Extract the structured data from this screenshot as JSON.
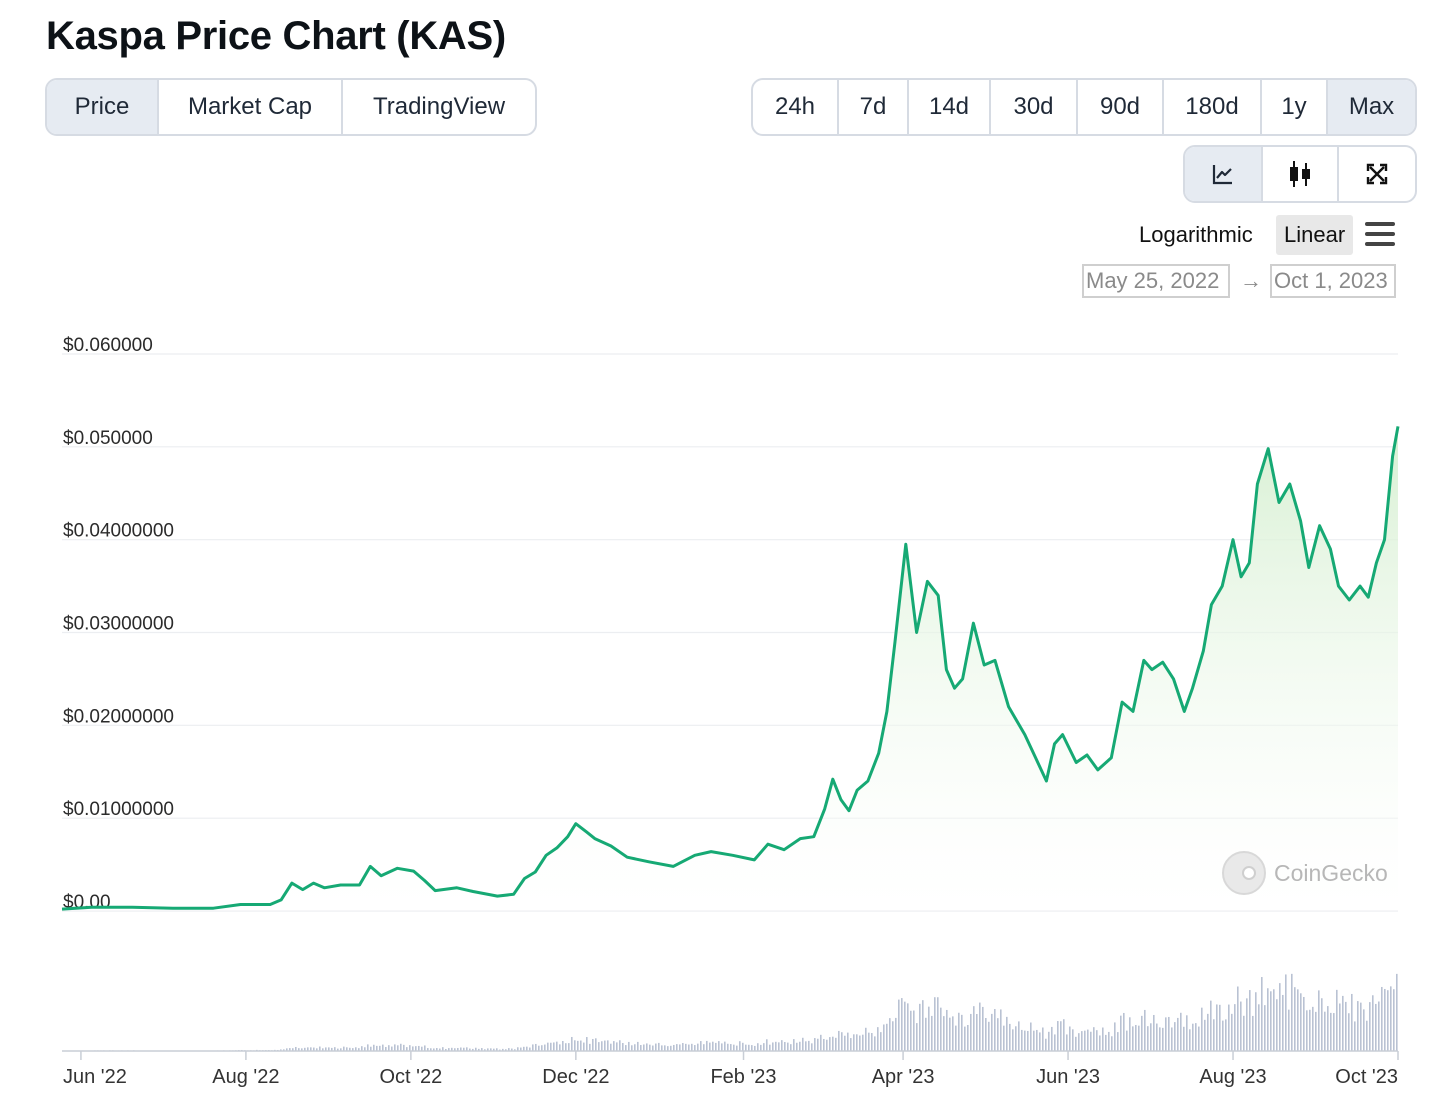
{
  "page": {
    "title": "Kaspa Price Chart (KAS)"
  },
  "view_tabs": [
    {
      "label": "Price",
      "active": true
    },
    {
      "label": "Market Cap",
      "active": false
    },
    {
      "label": "TradingView",
      "active": false
    }
  ],
  "range_tabs": [
    {
      "label": "24h",
      "active": false
    },
    {
      "label": "7d",
      "active": false
    },
    {
      "label": "14d",
      "active": false
    },
    {
      "label": "30d",
      "active": false
    },
    {
      "label": "90d",
      "active": false
    },
    {
      "label": "180d",
      "active": false
    },
    {
      "label": "1y",
      "active": false
    },
    {
      "label": "Max",
      "active": true
    }
  ],
  "chart_tools": [
    {
      "icon": "line-chart-icon",
      "active": true
    },
    {
      "icon": "candlestick-icon",
      "active": false
    },
    {
      "icon": "fullscreen-icon",
      "active": false
    }
  ],
  "scale": {
    "log_label": "Logarithmic",
    "linear_label": "Linear",
    "selected": "Linear"
  },
  "date_range": {
    "from": "May 25, 2022",
    "arrow": "→",
    "to": "Oct 1, 2023"
  },
  "watermark": {
    "text": "CoinGecko"
  },
  "colors": {
    "line": "#16a974",
    "fill_top": "#d5efd0",
    "volume": "#b9c2d3",
    "grid": "#e9ecef"
  },
  "chart_data": {
    "type": "line",
    "title": "Kaspa Price Chart (KAS)",
    "ylim": [
      0,
      0.06
    ],
    "y_ticks": [
      {
        "value": 0.06,
        "label": "$0.060000"
      },
      {
        "value": 0.05,
        "label": "$0.050000"
      },
      {
        "value": 0.04,
        "label": "$0.04000000"
      },
      {
        "value": 0.03,
        "label": "$0.03000000"
      },
      {
        "value": 0.02,
        "label": "$0.02000000"
      },
      {
        "value": 0.01,
        "label": "$0.01000000"
      },
      {
        "value": 0.0,
        "label": "$0.00"
      }
    ],
    "xlim": [
      "2022-05-25",
      "2023-10-01"
    ],
    "x_ticks": [
      {
        "date": "2022-06-01",
        "label": "Jun '22"
      },
      {
        "date": "2022-08-01",
        "label": "Aug '22"
      },
      {
        "date": "2022-10-01",
        "label": "Oct '22"
      },
      {
        "date": "2022-12-01",
        "label": "Dec '22"
      },
      {
        "date": "2023-02-01",
        "label": "Feb '23"
      },
      {
        "date": "2023-04-01",
        "label": "Apr '23"
      },
      {
        "date": "2023-06-01",
        "label": "Jun '23"
      },
      {
        "date": "2023-08-01",
        "label": "Aug '23"
      },
      {
        "date": "2023-10-01",
        "label": "Oct '23"
      }
    ],
    "grid": true,
    "legend": "none",
    "series": [
      {
        "points": [
          [
            "2022-05-25",
            0.0002
          ],
          [
            "2022-06-05",
            0.0004
          ],
          [
            "2022-06-20",
            0.0004
          ],
          [
            "2022-07-05",
            0.0003
          ],
          [
            "2022-07-20",
            0.0003
          ],
          [
            "2022-07-30",
            0.0007
          ],
          [
            "2022-08-10",
            0.0007
          ],
          [
            "2022-08-14",
            0.0012
          ],
          [
            "2022-08-18",
            0.003
          ],
          [
            "2022-08-22",
            0.0023
          ],
          [
            "2022-08-26",
            0.003
          ],
          [
            "2022-08-30",
            0.0025
          ],
          [
            "2022-09-05",
            0.0028
          ],
          [
            "2022-09-12",
            0.0028
          ],
          [
            "2022-09-16",
            0.0048
          ],
          [
            "2022-09-20",
            0.0038
          ],
          [
            "2022-09-26",
            0.0046
          ],
          [
            "2022-10-02",
            0.0043
          ],
          [
            "2022-10-06",
            0.0033
          ],
          [
            "2022-10-10",
            0.0022
          ],
          [
            "2022-10-18",
            0.0025
          ],
          [
            "2022-10-24",
            0.0021
          ],
          [
            "2022-11-02",
            0.0016
          ],
          [
            "2022-11-08",
            0.0018
          ],
          [
            "2022-11-12",
            0.0035
          ],
          [
            "2022-11-16",
            0.0042
          ],
          [
            "2022-11-20",
            0.006
          ],
          [
            "2022-11-24",
            0.0068
          ],
          [
            "2022-11-28",
            0.008
          ],
          [
            "2022-12-01",
            0.0094
          ],
          [
            "2022-12-05",
            0.0085
          ],
          [
            "2022-12-08",
            0.0078
          ],
          [
            "2022-12-14",
            0.007
          ],
          [
            "2022-12-20",
            0.0058
          ],
          [
            "2022-12-28",
            0.0053
          ],
          [
            "2023-01-06",
            0.0048
          ],
          [
            "2023-01-14",
            0.006
          ],
          [
            "2023-01-20",
            0.0064
          ],
          [
            "2023-01-28",
            0.006
          ],
          [
            "2023-02-05",
            0.0055
          ],
          [
            "2023-02-10",
            0.0072
          ],
          [
            "2023-02-16",
            0.0066
          ],
          [
            "2023-02-22",
            0.0078
          ],
          [
            "2023-02-27",
            0.008
          ],
          [
            "2023-03-03",
            0.011
          ],
          [
            "2023-03-06",
            0.0142
          ],
          [
            "2023-03-09",
            0.012
          ],
          [
            "2023-03-12",
            0.0108
          ],
          [
            "2023-03-15",
            0.013
          ],
          [
            "2023-03-19",
            0.014
          ],
          [
            "2023-03-23",
            0.017
          ],
          [
            "2023-03-26",
            0.0215
          ],
          [
            "2023-03-29",
            0.029
          ],
          [
            "2023-04-02",
            0.0395
          ],
          [
            "2023-04-06",
            0.03
          ],
          [
            "2023-04-10",
            0.0355
          ],
          [
            "2023-04-14",
            0.034
          ],
          [
            "2023-04-17",
            0.026
          ],
          [
            "2023-04-20",
            0.024
          ],
          [
            "2023-04-23",
            0.025
          ],
          [
            "2023-04-27",
            0.031
          ],
          [
            "2023-05-01",
            0.0265
          ],
          [
            "2023-05-05",
            0.027
          ],
          [
            "2023-05-10",
            0.022
          ],
          [
            "2023-05-16",
            0.019
          ],
          [
            "2023-05-20",
            0.0165
          ],
          [
            "2023-05-24",
            0.014
          ],
          [
            "2023-05-27",
            0.018
          ],
          [
            "2023-05-30",
            0.019
          ],
          [
            "2023-06-04",
            0.016
          ],
          [
            "2023-06-08",
            0.0168
          ],
          [
            "2023-06-12",
            0.0152
          ],
          [
            "2023-06-17",
            0.0165
          ],
          [
            "2023-06-21",
            0.0225
          ],
          [
            "2023-06-25",
            0.0215
          ],
          [
            "2023-06-29",
            0.027
          ],
          [
            "2023-07-02",
            0.026
          ],
          [
            "2023-07-06",
            0.0268
          ],
          [
            "2023-07-10",
            0.025
          ],
          [
            "2023-07-14",
            0.0215
          ],
          [
            "2023-07-17",
            0.024
          ],
          [
            "2023-07-21",
            0.028
          ],
          [
            "2023-07-24",
            0.033
          ],
          [
            "2023-07-28",
            0.035
          ],
          [
            "2023-08-01",
            0.04
          ],
          [
            "2023-08-04",
            0.036
          ],
          [
            "2023-08-07",
            0.0375
          ],
          [
            "2023-08-10",
            0.046
          ],
          [
            "2023-08-14",
            0.0498
          ],
          [
            "2023-08-18",
            0.044
          ],
          [
            "2023-08-22",
            0.046
          ],
          [
            "2023-08-26",
            0.042
          ],
          [
            "2023-08-29",
            0.037
          ],
          [
            "2023-09-02",
            0.0415
          ],
          [
            "2023-09-06",
            0.039
          ],
          [
            "2023-09-09",
            0.035
          ],
          [
            "2023-09-13",
            0.0335
          ],
          [
            "2023-09-17",
            0.035
          ],
          [
            "2023-09-20",
            0.0338
          ],
          [
            "2023-09-23",
            0.0375
          ],
          [
            "2023-09-26",
            0.04
          ],
          [
            "2023-09-29",
            0.049
          ],
          [
            "2023-10-01",
            0.0522
          ]
        ]
      }
    ]
  }
}
